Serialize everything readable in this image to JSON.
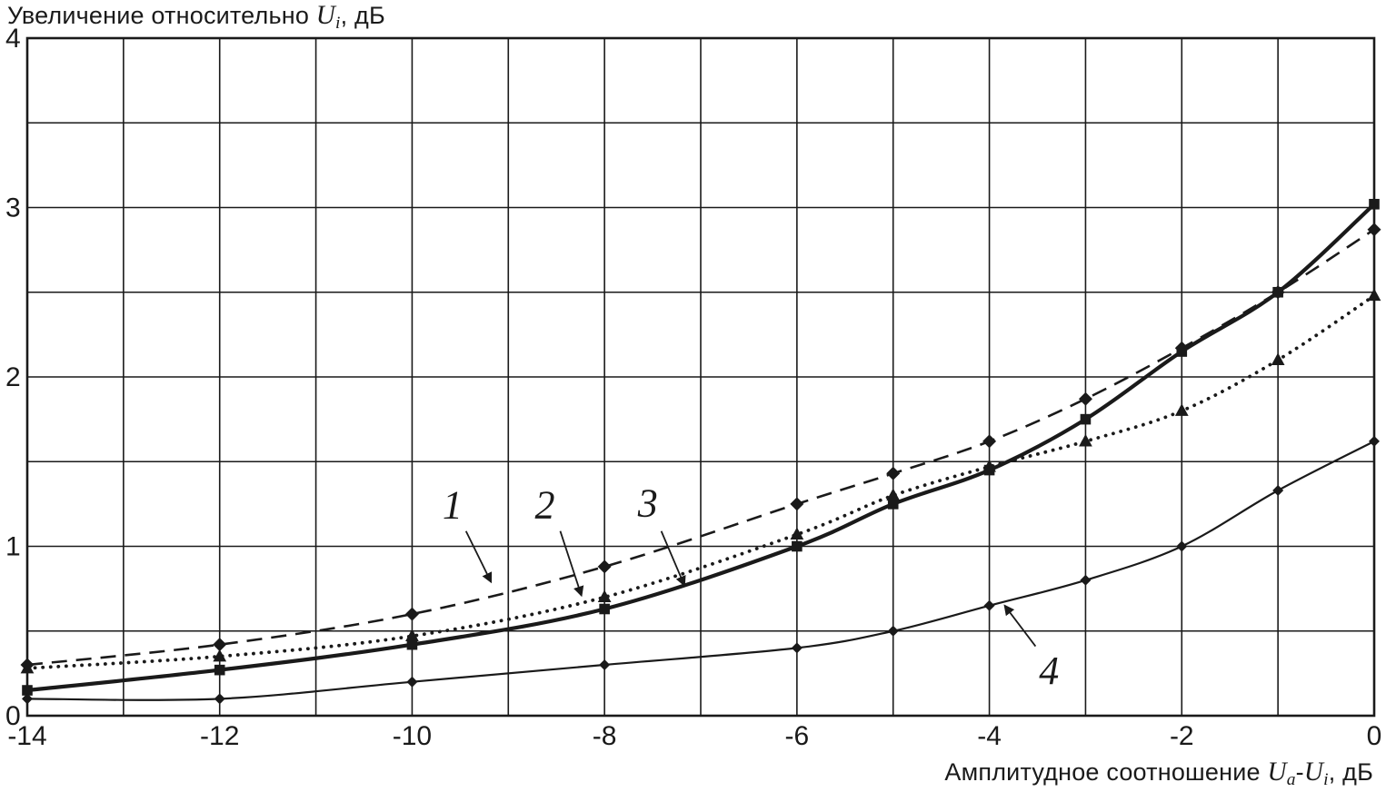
{
  "chart_data": {
    "type": "line",
    "title": {
      "text": "Увеличение относительно ",
      "var1": "U",
      "sub1": "i",
      "suffix": ", дБ"
    },
    "xlabel": {
      "text": "Амплитудное соотношение ",
      "var1": "U",
      "sub1": "a",
      "sep": "-",
      "var2": "U",
      "sub2": "i",
      "suffix": ", дБ"
    },
    "x": [
      -14,
      -12,
      -10,
      -8,
      -6,
      -5,
      -4,
      -3,
      -2,
      -1,
      0
    ],
    "series": [
      {
        "name": "1",
        "style": "dashed",
        "marker": "diamond",
        "values": [
          0.3,
          0.42,
          0.6,
          0.88,
          1.25,
          1.43,
          1.62,
          1.87,
          2.17,
          2.5,
          2.87
        ]
      },
      {
        "name": "2",
        "style": "dotted",
        "marker": "triangle",
        "values": [
          0.28,
          0.35,
          0.47,
          0.7,
          1.07,
          1.3,
          1.47,
          1.62,
          1.8,
          2.1,
          2.48
        ]
      },
      {
        "name": "3",
        "style": "solid-thick",
        "marker": "square",
        "values": [
          0.15,
          0.27,
          0.42,
          0.63,
          1.0,
          1.25,
          1.45,
          1.75,
          2.15,
          2.5,
          3.02
        ]
      },
      {
        "name": "4",
        "style": "solid-thin",
        "marker": "diamond-small",
        "values": [
          0.1,
          0.1,
          0.2,
          0.3,
          0.4,
          0.5,
          0.65,
          0.8,
          1.0,
          1.33,
          1.62
        ]
      }
    ],
    "xlim": [
      -14,
      0
    ],
    "ylim": [
      0,
      4
    ],
    "xticks": [
      -14,
      -12,
      -10,
      -8,
      -6,
      -4,
      -2,
      0
    ],
    "yticks": [
      0,
      1,
      2,
      3,
      4
    ],
    "grid": {
      "x_step": 1,
      "y_step": 0.5
    },
    "legend_position": "none",
    "annotations": [
      {
        "label": "1",
        "lx": -9.58,
        "ly": 1.25,
        "sx": -9.44,
        "sy": 1.09,
        "tx": -9.18,
        "ty": 0.79
      },
      {
        "label": "2",
        "lx": -8.62,
        "ly": 1.25,
        "sx": -8.46,
        "sy": 1.09,
        "tx": -8.24,
        "ty": 0.71
      },
      {
        "label": "3",
        "lx": -7.55,
        "ly": 1.26,
        "sx": -7.41,
        "sy": 1.09,
        "tx": -7.17,
        "ty": 0.77
      },
      {
        "label": "4",
        "lx": -3.38,
        "ly": 0.27,
        "sx": -3.52,
        "sy": 0.41,
        "tx": -3.84,
        "ty": 0.65
      }
    ]
  },
  "colors": {
    "ink": "#1a1a1a",
    "bg": "#ffffff"
  }
}
